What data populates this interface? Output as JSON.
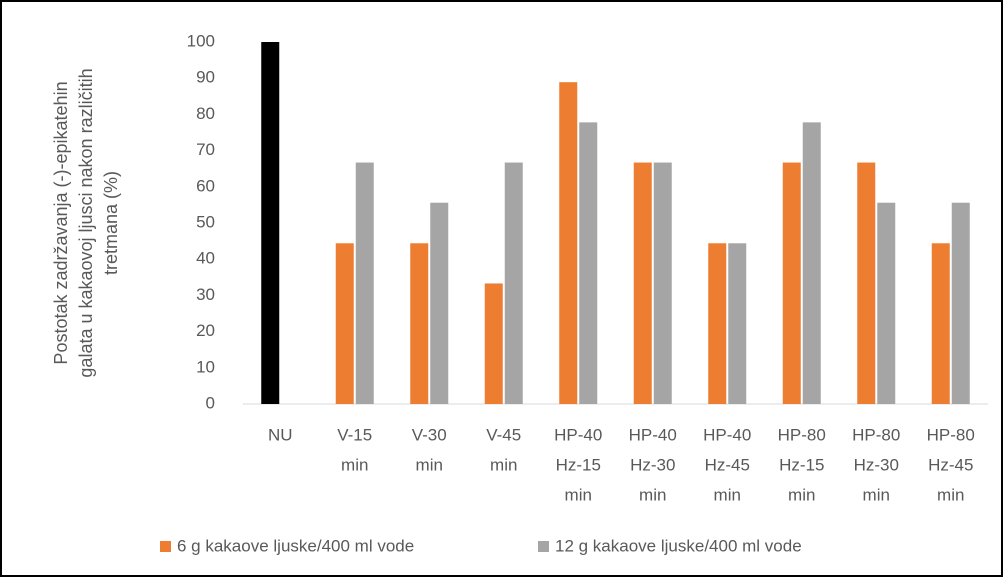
{
  "chart_data": {
    "type": "bar",
    "y_label": [
      "Postotak zadržavanja  (-)-epikatehin",
      "galata u kakaovoj ljusci nakon različitih",
      "tretmana (%)"
    ],
    "categories": [
      [
        "NU"
      ],
      [
        "V-15",
        "min"
      ],
      [
        "V-30",
        "min"
      ],
      [
        "V-45",
        "min"
      ],
      [
        "HP-40",
        "Hz-15",
        "min"
      ],
      [
        "HP-40",
        "Hz-30",
        "min"
      ],
      [
        "HP-40",
        "Hz-45",
        "min"
      ],
      [
        "HP-80",
        "Hz-15",
        "min"
      ],
      [
        "HP-80",
        "Hz-30",
        "min"
      ],
      [
        "HP-80",
        "Hz-45",
        "min"
      ]
    ],
    "series": [
      {
        "name": "6 g kakaove ljuske/400 ml vode",
        "color": "#ed7d31",
        "point_colors": [
          "#000000",
          "#ed7d31",
          "#ed7d31",
          "#ed7d31",
          "#ed7d31",
          "#ed7d31",
          "#ed7d31",
          "#ed7d31",
          "#ed7d31",
          "#ed7d31"
        ],
        "values": [
          100,
          44.4,
          44.4,
          33.3,
          88.9,
          66.7,
          44.4,
          66.7,
          66.7,
          44.4
        ]
      },
      {
        "name": "12 g kakaove ljuske/400 ml vode",
        "color": "#a5a5a5",
        "values": [
          null,
          66.7,
          55.6,
          66.7,
          77.8,
          66.7,
          44.4,
          77.8,
          55.6,
          55.6
        ]
      }
    ],
    "ylim": [
      0,
      100
    ],
    "yticks": [
      0,
      10,
      20,
      30,
      40,
      50,
      60,
      70,
      80,
      90,
      100
    ],
    "grid": false,
    "legend": "bottom"
  }
}
